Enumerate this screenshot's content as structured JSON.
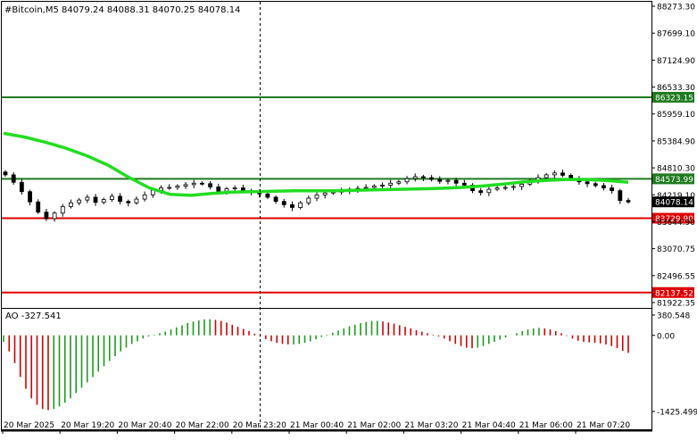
{
  "chart_data": {
    "type": "candlestick",
    "symbol": "#Bitcoin,M5",
    "ohlc_header": {
      "open": "84079.24",
      "high": "84088.31",
      "low": "84070.25",
      "close": "84078.14"
    },
    "title_line": "#Bitcoin,M5  84079.24 84088.31 84070.25 84078.14",
    "price_axis_ticks": [
      "88273.30",
      "87699.10",
      "87124.90",
      "86533.30",
      "85959.10",
      "85384.90",
      "84810.30",
      "84219.10",
      "83644.90",
      "83070.75",
      "82496.55",
      "81922.35"
    ],
    "time_axis_ticks": [
      "20 Mar 2025",
      "20 Mar 19:20",
      "20 Mar 20:40",
      "20 Mar 22:00",
      "20 Mar 23:20",
      "21 Mar 00:40",
      "21 Mar 02:00",
      "21 Mar 03:20",
      "21 Mar 04:40",
      "21 Mar 06:00",
      "21 Mar 07:20"
    ],
    "ylim": [
      81922.35,
      88273.3
    ],
    "horizontal_levels": [
      {
        "price": 86323.15,
        "label": "86323.15",
        "color": "#1e7a1e"
      },
      {
        "price": 84573.99,
        "label": "84573.99",
        "color": "#1e7a1e"
      },
      {
        "price": 83729.9,
        "label": "83729.90",
        "color": "#e00000"
      },
      {
        "price": 82137.52,
        "label": "82137.52",
        "color": "#e00000"
      }
    ],
    "current_price_label": "84078.14",
    "moving_average": {
      "color": "#22dd22",
      "values": [
        85550,
        85470,
        85360,
        85230,
        85070,
        84870,
        84610,
        84380,
        84240,
        84220,
        84260,
        84290,
        84300,
        84310,
        84320,
        84320,
        84320,
        84330,
        84340,
        84350,
        84360,
        84370,
        84390,
        84420,
        84460,
        84510,
        84540,
        84560,
        84560,
        84540,
        84500
      ]
    },
    "closes": [
      84660,
      84500,
      84300,
      84080,
      83860,
      83720,
      83840,
      83980,
      84060,
      84120,
      84180,
      84070,
      84130,
      84200,
      84090,
      84060,
      84140,
      84230,
      84330,
      84380,
      84390,
      84420,
      84450,
      84480,
      84470,
      84400,
      84310,
      84360,
      84380,
      84320,
      84290,
      84250,
      84180,
      84090,
      84020,
      83960,
      84060,
      84160,
      84230,
      84270,
      84290,
      84310,
      84350,
      84370,
      84390,
      84420,
      84440,
      84480,
      84510,
      84580,
      84620,
      84600,
      84560,
      84520,
      84540,
      84480,
      84440,
      84320,
      84280,
      84350,
      84380,
      84390,
      84410,
      84460,
      84520,
      84600,
      84660,
      84700,
      84650,
      84580,
      84510,
      84470,
      84430,
      84380,
      84320,
      84110,
      84080
    ],
    "ao_indicator": {
      "label": "AO -327.541",
      "axis_ticks": [
        "380.548",
        "0.00",
        "-1425.499"
      ],
      "ylim": [
        -1425.499,
        380.548
      ],
      "values": [
        -120,
        -300,
        -520,
        -780,
        -1000,
        -1180,
        -1300,
        -1380,
        -1400,
        -1380,
        -1330,
        -1260,
        -1180,
        -1080,
        -980,
        -880,
        -780,
        -680,
        -580,
        -480,
        -390,
        -300,
        -230,
        -160,
        -110,
        -60,
        -20,
        10,
        40,
        70,
        110,
        150,
        190,
        230,
        260,
        280,
        300,
        300,
        290,
        270,
        240,
        200,
        160,
        120,
        80,
        30,
        -20,
        -70,
        -110,
        -140,
        -160,
        -170,
        -170,
        -160,
        -140,
        -110,
        -70,
        -30,
        10,
        50,
        90,
        130,
        170,
        200,
        230,
        250,
        270,
        270,
        260,
        240,
        220,
        190,
        160,
        130,
        100,
        70,
        40,
        10,
        -20,
        -60,
        -110,
        -160,
        -200,
        -230,
        -240,
        -230,
        -200,
        -160,
        -120,
        -80,
        -40,
        0,
        40,
        80,
        110,
        130,
        140,
        130,
        110,
        80,
        40,
        -10,
        -60,
        -100,
        -120,
        -130,
        -140,
        -150,
        -170,
        -200,
        -240,
        -290,
        -327.541
      ]
    }
  }
}
